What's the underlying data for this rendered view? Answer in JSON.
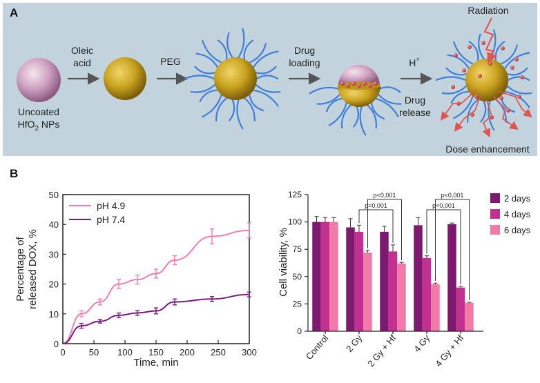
{
  "panel_a": {
    "letter": "A",
    "steps": {
      "uncoated_line1": "Uncoated",
      "uncoated_line2_prefix": "HfO",
      "uncoated_line2_sub": "2",
      "uncoated_line2_suffix": " NPs",
      "oleic_line1": "Oleic",
      "oleic_line2": "acid",
      "peg": "PEG",
      "drug_loading_line1": "Drug",
      "drug_loading_line2": "loading",
      "h_plus_main": "H",
      "h_plus_sup": "+",
      "drug_release_line1": "Drug",
      "drug_release_line2": "release",
      "radiation": "Radiation",
      "dose_enhancement": "Dose enhancement"
    }
  },
  "panel_b": {
    "letter": "B"
  },
  "chart_data": [
    {
      "type": "line",
      "xlabel": "Time, min",
      "ylabel_line1": "Percentage of",
      "ylabel_line2": "released DOX, %",
      "xlim": [
        0,
        300
      ],
      "ylim": [
        0,
        50
      ],
      "xticks": [
        0,
        50,
        100,
        150,
        200,
        250,
        300
      ],
      "yticks": [
        0,
        10,
        20,
        30,
        40,
        50
      ],
      "legend_position": "top-left",
      "series": [
        {
          "name": "pH 4.9",
          "color": "#f47ab4",
          "x": [
            0,
            30,
            60,
            90,
            120,
            150,
            180,
            240,
            300
          ],
          "y": [
            0,
            10,
            14,
            20,
            21.5,
            23.5,
            28,
            36,
            38
          ],
          "err": [
            0,
            1,
            1,
            1.5,
            1.5,
            1.5,
            1.5,
            2.5,
            2.5
          ]
        },
        {
          "name": "pH 7.4",
          "color": "#7b1a7e",
          "x": [
            0,
            30,
            60,
            90,
            120,
            150,
            180,
            240,
            300
          ],
          "y": [
            0,
            6,
            7.5,
            9.5,
            10.3,
            11,
            14,
            15,
            16.5
          ],
          "err": [
            0,
            0.8,
            0.6,
            0.8,
            0.8,
            1,
            1,
            0.8,
            0.8
          ]
        }
      ]
    },
    {
      "type": "bar",
      "ylabel": "Cell viability, %",
      "ylim": [
        0,
        125
      ],
      "yticks": [
        0,
        25,
        50,
        75,
        100,
        125
      ],
      "categories": [
        "Control",
        "2 Gy",
        "2 Gy + Hf",
        "4 Gy",
        "4 Gy + Hf"
      ],
      "legend_position": "top-right",
      "series": [
        {
          "name": "2 days",
          "color": "#7b1a6e",
          "values": [
            100,
            95,
            91,
            97,
            98
          ],
          "err": [
            5,
            8,
            5,
            7,
            1
          ]
        },
        {
          "name": "4 days",
          "color": "#c2318f",
          "values": [
            100,
            91,
            73,
            67,
            40
          ],
          "err": [
            4,
            6,
            6,
            2,
            1
          ]
        },
        {
          "name": "6 days",
          "color": "#f27aa8",
          "values": [
            100,
            72,
            62,
            43,
            26
          ],
          "err": [
            4,
            2,
            1,
            1,
            0.5
          ]
        }
      ],
      "annotations": [
        {
          "group_a": 1,
          "group_b": 2,
          "label": "p<0,001"
        },
        {
          "group_a": 1,
          "group_b": 2,
          "label": "p=0,001"
        },
        {
          "group_a": 3,
          "group_b": 4,
          "label": "p<0,001"
        },
        {
          "group_a": 3,
          "group_b": 4,
          "label": "p<0,001"
        }
      ]
    }
  ]
}
